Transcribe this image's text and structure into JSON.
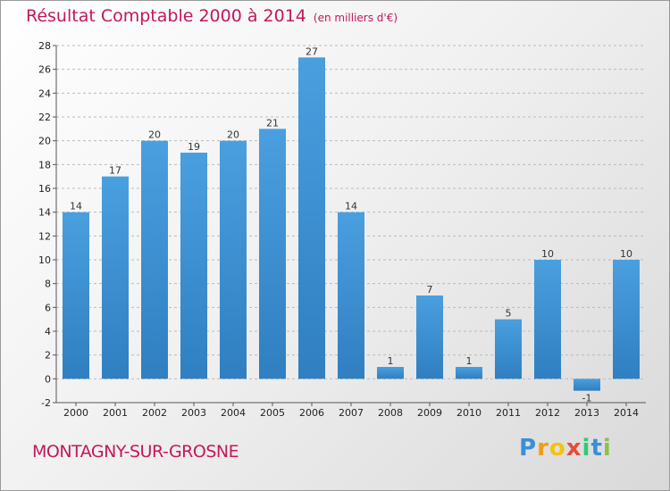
{
  "chart_data": {
    "type": "bar",
    "title": "Résultat Comptable 2000 à 2014",
    "unit_note": "(en milliers d'€)",
    "categories": [
      "2000",
      "2001",
      "2002",
      "2003",
      "2004",
      "2005",
      "2006",
      "2007",
      "2008",
      "2009",
      "2010",
      "2011",
      "2012",
      "2013",
      "2014"
    ],
    "values": [
      14,
      17,
      20,
      19,
      20,
      21,
      27,
      14,
      1,
      7,
      1,
      5,
      10,
      -1,
      10
    ],
    "ylim": [
      -2,
      28
    ],
    "yticks": [
      -2,
      0,
      2,
      4,
      6,
      8,
      10,
      12,
      14,
      16,
      18,
      20,
      22,
      24,
      26,
      28
    ],
    "xlabel": "",
    "ylabel": "",
    "grid": "horizontal-dashed",
    "bar_color": "#4a9fdf",
    "bar_color_dark": "#2f7fc1"
  },
  "commune": "MONTAGNY-SUR-GROSNE",
  "logo": {
    "letters": [
      "P",
      "r",
      "o",
      "x",
      "i",
      "t",
      "i"
    ],
    "colors": [
      "#3a8fd6",
      "#f39c12",
      "#f1c40f",
      "#e74c3c",
      "#2ecc71",
      "#3a8fd6",
      "#8bc34a"
    ]
  },
  "colors": {
    "accent": "#c2185b",
    "grid": "#bbbbbb"
  }
}
